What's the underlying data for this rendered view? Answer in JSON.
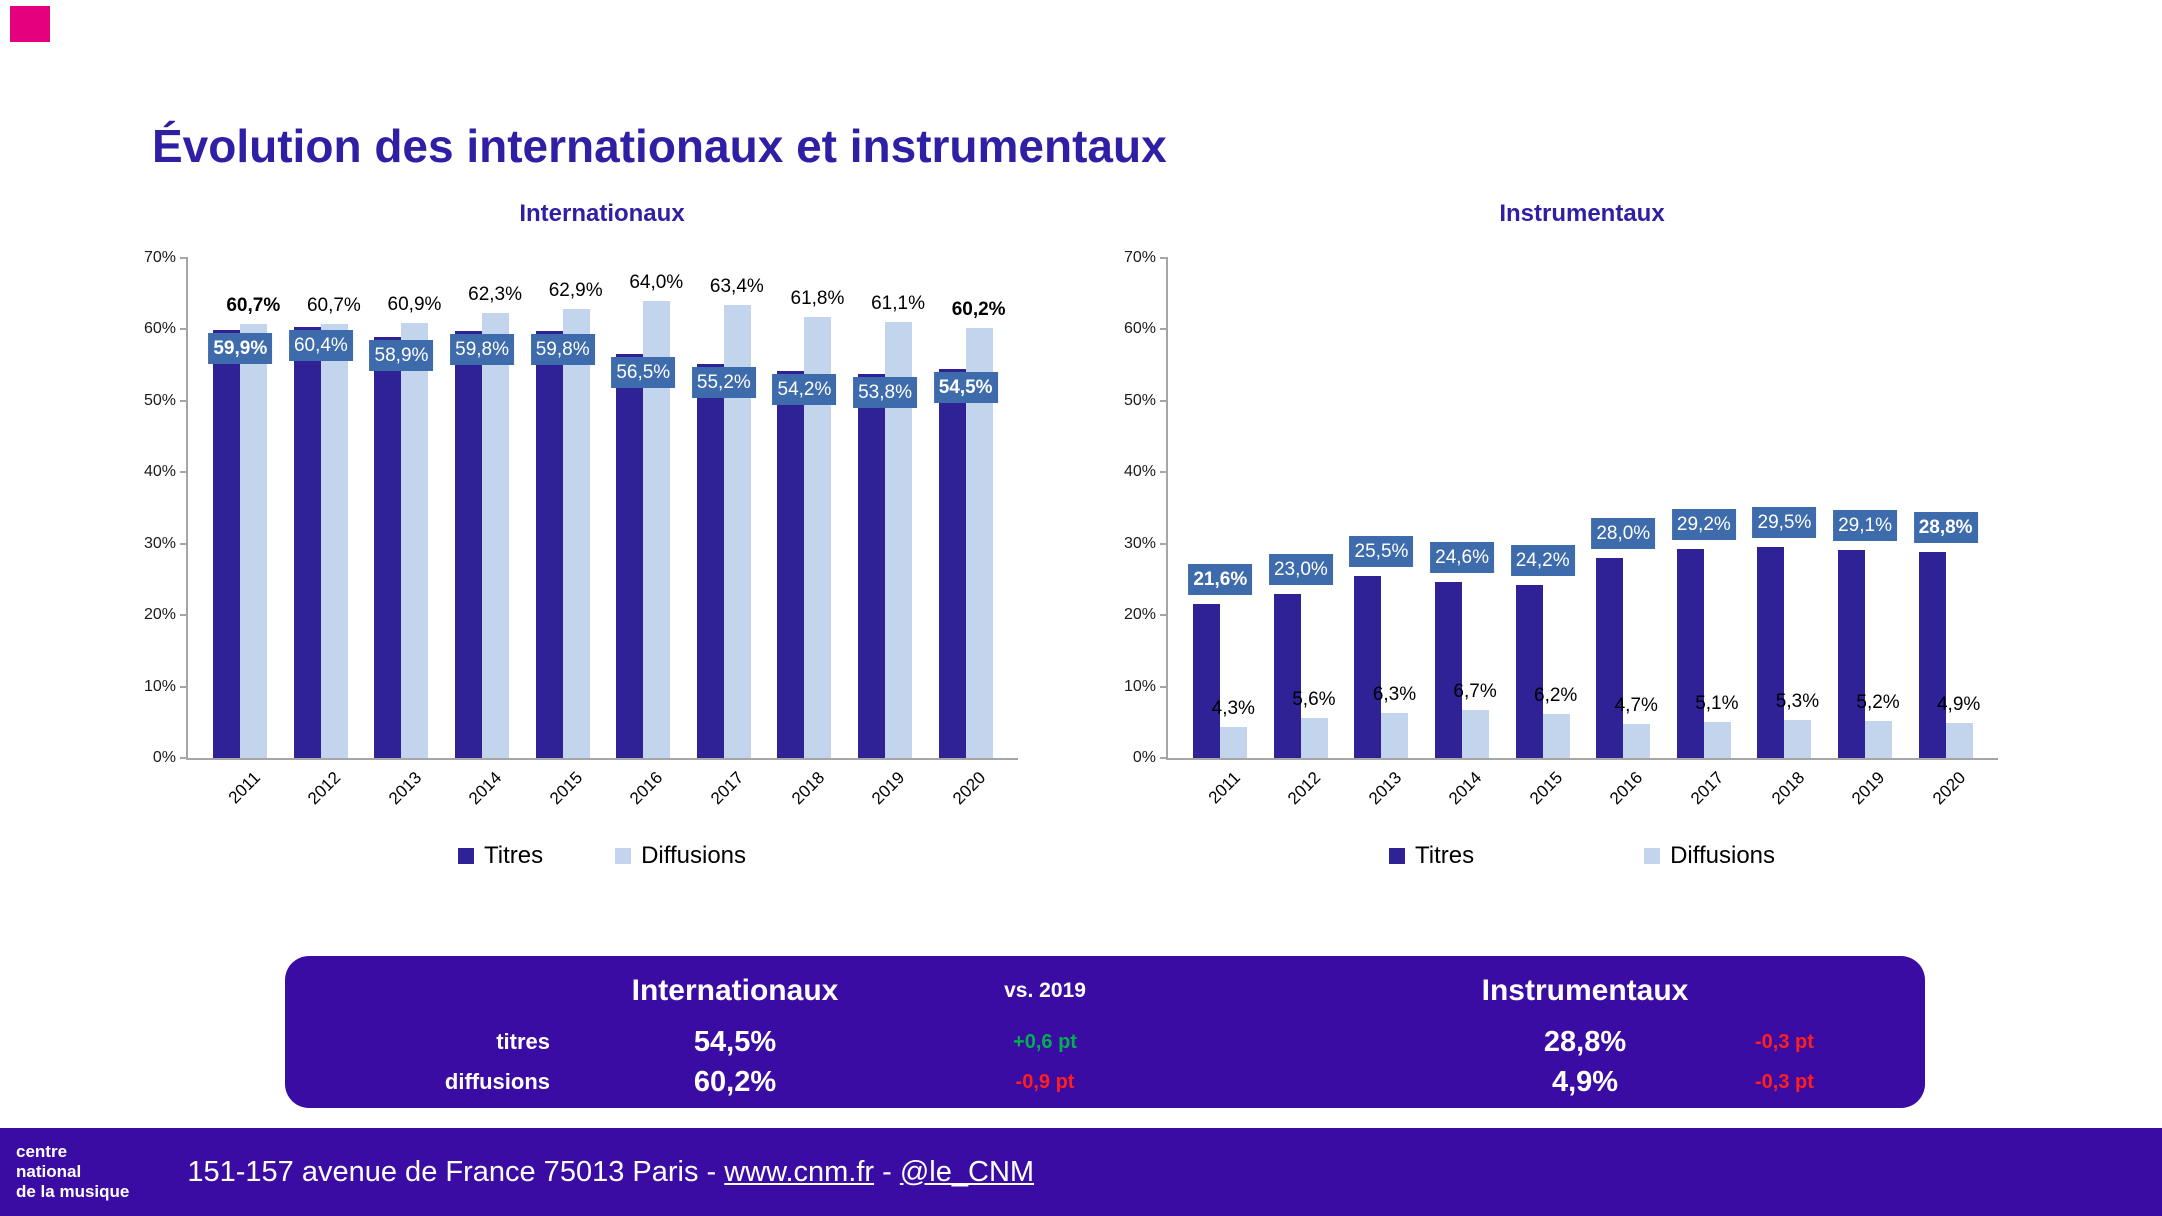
{
  "colors": {
    "heading": "#2E1FA5",
    "titres_bar": "#2E2296",
    "diffusions_bar": "#C3D4ED",
    "label_box": "#3E6BAB",
    "panel_purple": "#3A0CA3",
    "accent_pink": "#E5007D",
    "positive_green": "#00B050",
    "negative_red": "#FF1F1F"
  },
  "page": {
    "title": "Évolution des internationaux et instrumentaux"
  },
  "chart_data": [
    {
      "type": "bar",
      "title": "Internationaux",
      "categories": [
        "2011",
        "2012",
        "2013",
        "2014",
        "2015",
        "2016",
        "2017",
        "2018",
        "2019",
        "2020"
      ],
      "ylim": [
        0,
        70
      ],
      "yticks": [
        "0%",
        "10%",
        "20%",
        "30%",
        "40%",
        "50%",
        "60%",
        "70%"
      ],
      "legend_position": "bottom",
      "grid": false,
      "series": [
        {
          "name": "Titres",
          "values": [
            59.9,
            60.4,
            58.9,
            59.8,
            59.8,
            56.5,
            55.2,
            54.2,
            53.8,
            54.5
          ],
          "labels": [
            "59,9%",
            "60,4%",
            "58,9%",
            "59,8%",
            "59,8%",
            "56,5%",
            "55,2%",
            "54,2%",
            "53,8%",
            "54,5%"
          ],
          "label_style": "box",
          "label_position": "inside",
          "bold_indices": [
            0,
            9
          ]
        },
        {
          "name": "Diffusions",
          "values": [
            60.7,
            60.7,
            60.9,
            62.3,
            62.9,
            64.0,
            63.4,
            61.8,
            61.1,
            60.2
          ],
          "labels": [
            "60,7%",
            "60,7%",
            "60,9%",
            "62,3%",
            "62,9%",
            "64,0%",
            "63,4%",
            "61,8%",
            "61,1%",
            "60,2%"
          ],
          "label_style": "plain",
          "label_position": "outside",
          "bold_indices": [
            0,
            9
          ]
        }
      ]
    },
    {
      "type": "bar",
      "title": "Instrumentaux",
      "categories": [
        "2011",
        "2012",
        "2013",
        "2014",
        "2015",
        "2016",
        "2017",
        "2018",
        "2019",
        "2020"
      ],
      "ylim": [
        0,
        70
      ],
      "yticks": [
        "0%",
        "10%",
        "20%",
        "30%",
        "40%",
        "50%",
        "60%",
        "70%"
      ],
      "legend_position": "bottom",
      "grid": false,
      "series": [
        {
          "name": "Titres",
          "values": [
            21.6,
            23.0,
            25.5,
            24.6,
            24.2,
            28.0,
            29.2,
            29.5,
            29.1,
            28.8
          ],
          "labels": [
            "21,6%",
            "23,0%",
            "25,5%",
            "24,6%",
            "24,2%",
            "28,0%",
            "29,2%",
            "29,5%",
            "29,1%",
            "28,8%"
          ],
          "label_style": "box",
          "label_position": "outside",
          "bold_indices": [
            0,
            9
          ]
        },
        {
          "name": "Diffusions",
          "values": [
            4.3,
            5.6,
            6.3,
            6.7,
            6.2,
            4.7,
            5.1,
            5.3,
            5.2,
            4.9
          ],
          "labels": [
            "4,3%",
            "5,6%",
            "6,3%",
            "6,7%",
            "6,2%",
            "4,7%",
            "5,1%",
            "5,3%",
            "5,2%",
            "4,9%"
          ],
          "label_style": "plain",
          "label_position": "outside",
          "bold_indices": []
        }
      ]
    }
  ],
  "summary": {
    "header_international": "Internationaux",
    "header_vs": "vs. 2019",
    "header_instrumental": "Instrumentaux",
    "rows": [
      {
        "label": "titres",
        "intl_value": "54,5%",
        "intl_delta": "+0,6 pt",
        "intl_delta_type": "positive",
        "instr_value": "28,8%",
        "instr_delta": "-0,3 pt",
        "instr_delta_type": "negative"
      },
      {
        "label": "diffusions",
        "intl_value": "60,2%",
        "intl_delta": "-0,9 pt",
        "intl_delta_type": "negative",
        "instr_value": "4,9%",
        "instr_delta": "-0,3 pt",
        "instr_delta_type": "negative"
      }
    ]
  },
  "footer": {
    "logo_lines": [
      "centre",
      "national",
      "de la musique"
    ],
    "address_prefix": "151-157 avenue de France 75013 Paris - ",
    "link_site": "www.cnm.fr",
    "separator": " - ",
    "link_twitter": "@le_CNM"
  }
}
